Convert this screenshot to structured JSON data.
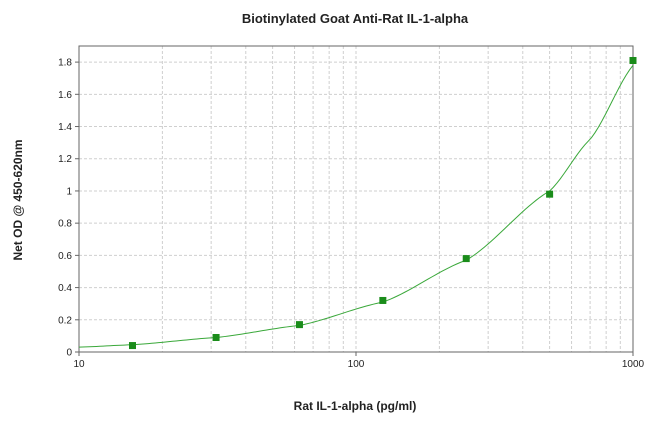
{
  "chart_data": {
    "type": "scatter",
    "title": "Biotinylated Goat Anti-Rat IL-1-alpha",
    "xlabel": "Rat IL-1-alpha (pg/ml)",
    "ylabel": "Net OD @ 450-620nm",
    "x_scale": "log",
    "xlim": [
      10,
      1000
    ],
    "ylim": [
      0,
      1.9
    ],
    "x_ticks": [
      "10",
      "100",
      "1000"
    ],
    "y_ticks": [
      "0",
      "0.2",
      "0.4",
      "0.6",
      "0.8",
      "1",
      "1.2",
      "1.4",
      "1.6",
      "1.8"
    ],
    "grid": true,
    "colors": {
      "series": "#1a8c1a",
      "curve": "#3aa83a",
      "grid": "#cfcfcf"
    },
    "series": [
      {
        "x": [
          15.6,
          31.25,
          62.5,
          125,
          250,
          500,
          1000
        ],
        "y": [
          0.04,
          0.09,
          0.17,
          0.32,
          0.58,
          0.98,
          1.81
        ]
      }
    ],
    "fit_curve": {
      "x": [
        10,
        15.6,
        31.25,
        62.5,
        125,
        250,
        500,
        700,
        1000
      ],
      "y": [
        0.03,
        0.045,
        0.09,
        0.165,
        0.31,
        0.57,
        1.0,
        1.32,
        1.78
      ]
    }
  }
}
